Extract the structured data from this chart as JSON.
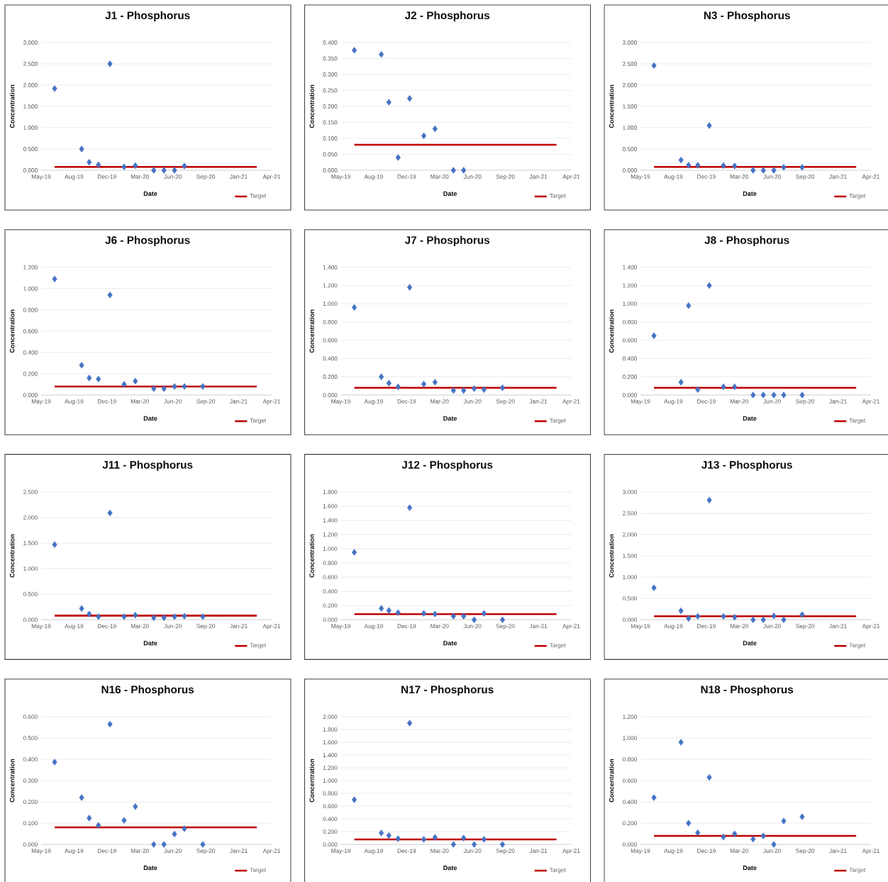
{
  "chart_data": [
    {
      "type": "scatter",
      "title": "J1 - Phosphorus",
      "xlabel": "Date",
      "ylabel": "Concentration",
      "grid": "y",
      "legend": "bottom right",
      "marker": "diamond",
      "xlim": [
        "2019-05-15",
        "2021-04-14"
      ],
      "xticks": [
        {
          "value": "2019-05-15",
          "label": "May-19"
        },
        {
          "value": "2019-08-23",
          "label": "Aug-19"
        },
        {
          "value": "2019-12-01",
          "label": "Dec-19"
        },
        {
          "value": "2020-03-10",
          "label": "Mar-20"
        },
        {
          "value": "2020-06-18",
          "label": "Jun-20"
        },
        {
          "value": "2020-09-26",
          "label": "Sep-20"
        },
        {
          "value": "2021-01-04",
          "label": "Jan-21"
        },
        {
          "value": "2021-04-14",
          "label": "Apr-21"
        }
      ],
      "ylim": [
        0,
        3
      ],
      "yticks": [
        {
          "value": 0,
          "label": "0.000"
        },
        {
          "value": 0.5,
          "label": "0.500"
        },
        {
          "value": 1,
          "label": "1.000"
        },
        {
          "value": 1.5,
          "label": "1.500"
        },
        {
          "value": 2,
          "label": "2.000"
        },
        {
          "value": 2.5,
          "label": "2.500"
        },
        {
          "value": 3,
          "label": "3.000"
        }
      ],
      "series": [
        {
          "type": "scatter",
          "color": "#4472c4",
          "x": [
            "2019-06-25",
            "2019-09-15",
            "2019-10-08",
            "2019-11-05",
            "2019-12-10",
            "2020-01-22",
            "2020-02-25",
            "2020-04-21",
            "2020-05-22",
            "2020-06-23",
            "2020-07-23"
          ],
          "values": [
            1.92,
            0.5,
            0.19,
            0.13,
            2.5,
            0.08,
            0.11,
            0,
            0,
            0,
            0.1
          ]
        },
        {
          "type": "line",
          "name": "Target",
          "color": "#c00000",
          "marker": "none",
          "x": [
            "2019-06-25",
            "2021-02-28"
          ],
          "values": [
            0.08,
            0.08
          ]
        }
      ]
    },
    {
      "type": "scatter",
      "title": "J2 - Phosphorus",
      "xlabel": "Date",
      "ylabel": "Concentration",
      "grid": "y",
      "legend": "bottom right",
      "marker": "diamond",
      "xlim": [
        "2019-05-15",
        "2021-04-14"
      ],
      "xticks": [
        {
          "value": "2019-05-15",
          "label": "May-19"
        },
        {
          "value": "2019-08-23",
          "label": "Aug-19"
        },
        {
          "value": "2019-12-01",
          "label": "Dec-19"
        },
        {
          "value": "2020-03-10",
          "label": "Mar-20"
        },
        {
          "value": "2020-06-18",
          "label": "Jun-20"
        },
        {
          "value": "2020-09-26",
          "label": "Sep-20"
        },
        {
          "value": "2021-01-04",
          "label": "Jan-21"
        },
        {
          "value": "2021-04-14",
          "label": "Apr-21"
        }
      ],
      "ylim": [
        0,
        0.4
      ],
      "yticks": [
        {
          "value": 0,
          "label": "0.000"
        },
        {
          "value": 0.05,
          "label": "0.050"
        },
        {
          "value": 0.1,
          "label": "0.100"
        },
        {
          "value": 0.15,
          "label": "0.150"
        },
        {
          "value": 0.2,
          "label": "0.200"
        },
        {
          "value": 0.25,
          "label": "0.250"
        },
        {
          "value": 0.3,
          "label": "0.300"
        },
        {
          "value": 0.35,
          "label": "0.350"
        },
        {
          "value": 0.4,
          "label": "0.400"
        }
      ],
      "series": [
        {
          "type": "scatter",
          "color": "#4472c4",
          "x": [
            "2019-06-25",
            "2019-09-15",
            "2019-10-08",
            "2019-11-05",
            "2019-12-10",
            "2020-01-22",
            "2020-02-25",
            "2020-04-21",
            "2020-05-22"
          ],
          "values": [
            0.376,
            0.363,
            0.213,
            0.04,
            0.225,
            0.108,
            0.13,
            0,
            0
          ]
        },
        {
          "type": "line",
          "name": "Target",
          "color": "#c00000",
          "marker": "none",
          "x": [
            "2019-06-25",
            "2021-02-28"
          ],
          "values": [
            0.08,
            0.08
          ]
        }
      ]
    },
    {
      "type": "scatter",
      "title": "N3 - Phosphorus",
      "xlabel": "Date",
      "ylabel": "Concentration",
      "grid": "y",
      "legend": "bottom right",
      "marker": "diamond",
      "xlim": [
        "2019-05-15",
        "2021-04-14"
      ],
      "xticks": [
        {
          "value": "2019-05-15",
          "label": "May-19"
        },
        {
          "value": "2019-08-23",
          "label": "Aug-19"
        },
        {
          "value": "2019-12-01",
          "label": "Dec-19"
        },
        {
          "value": "2020-03-10",
          "label": "Mar-20"
        },
        {
          "value": "2020-06-18",
          "label": "Jun-20"
        },
        {
          "value": "2020-09-26",
          "label": "Sep-20"
        },
        {
          "value": "2021-01-04",
          "label": "Jan-21"
        },
        {
          "value": "2021-04-14",
          "label": "Apr-21"
        }
      ],
      "ylim": [
        0,
        3
      ],
      "yticks": [
        {
          "value": 0,
          "label": "0.000"
        },
        {
          "value": 0.5,
          "label": "0.500"
        },
        {
          "value": 1,
          "label": "1.000"
        },
        {
          "value": 1.5,
          "label": "1.500"
        },
        {
          "value": 2,
          "label": "2.000"
        },
        {
          "value": 2.5,
          "label": "2.500"
        },
        {
          "value": 3,
          "label": "3.000"
        }
      ],
      "series": [
        {
          "type": "scatter",
          "color": "#4472c4",
          "x": [
            "2019-06-25",
            "2019-09-15",
            "2019-10-08",
            "2019-11-05",
            "2019-12-10",
            "2020-01-22",
            "2020-02-25",
            "2020-04-21",
            "2020-05-22",
            "2020-06-23",
            "2020-07-23",
            "2020-09-17"
          ],
          "values": [
            2.46,
            0.24,
            0.12,
            0.12,
            1.05,
            0.11,
            0.1,
            0,
            0,
            0,
            0.07,
            0.07
          ]
        },
        {
          "type": "line",
          "name": "Target",
          "color": "#c00000",
          "marker": "none",
          "x": [
            "2019-06-25",
            "2021-02-28"
          ],
          "values": [
            0.08,
            0.08
          ]
        }
      ]
    },
    {
      "type": "scatter",
      "title": "J6 - Phosphorus",
      "xlabel": "Date",
      "ylabel": "Concentration",
      "grid": "y",
      "legend": "bottom right",
      "marker": "diamond",
      "xlim": [
        "2019-05-15",
        "2021-04-14"
      ],
      "xticks": [
        {
          "value": "2019-05-15",
          "label": "May-19"
        },
        {
          "value": "2019-08-23",
          "label": "Aug-19"
        },
        {
          "value": "2019-12-01",
          "label": "Dec-19"
        },
        {
          "value": "2020-03-10",
          "label": "Mar-20"
        },
        {
          "value": "2020-06-18",
          "label": "Jun-20"
        },
        {
          "value": "2020-09-26",
          "label": "Sep-20"
        },
        {
          "value": "2021-01-04",
          "label": "Jan-21"
        },
        {
          "value": "2021-04-14",
          "label": "Apr-21"
        }
      ],
      "ylim": [
        0,
        1.2
      ],
      "yticks": [
        {
          "value": 0,
          "label": "0.000"
        },
        {
          "value": 0.2,
          "label": "0.200"
        },
        {
          "value": 0.4,
          "label": "0.400"
        },
        {
          "value": 0.6,
          "label": "0.600"
        },
        {
          "value": 0.8,
          "label": "0.800"
        },
        {
          "value": 1,
          "label": "1.000"
        },
        {
          "value": 1.2,
          "label": "1.200"
        }
      ],
      "series": [
        {
          "type": "scatter",
          "color": "#4472c4",
          "x": [
            "2019-06-25",
            "2019-09-15",
            "2019-10-08",
            "2019-11-05",
            "2019-12-10",
            "2020-01-22",
            "2020-02-25",
            "2020-04-21",
            "2020-05-22",
            "2020-06-23",
            "2020-07-23",
            "2020-09-17"
          ],
          "values": [
            1.09,
            0.28,
            0.16,
            0.15,
            0.94,
            0.1,
            0.13,
            0.06,
            0.06,
            0.08,
            0.08,
            0.08
          ]
        },
        {
          "type": "line",
          "name": "Target",
          "color": "#c00000",
          "marker": "none",
          "x": [
            "2019-06-25",
            "2021-02-28"
          ],
          "values": [
            0.08,
            0.08
          ]
        }
      ]
    },
    {
      "type": "scatter",
      "title": "J7 - Phosphorus",
      "xlabel": "Date",
      "ylabel": "Concentration",
      "grid": "y",
      "legend": "bottom right",
      "marker": "diamond",
      "xlim": [
        "2019-05-15",
        "2021-04-14"
      ],
      "xticks": [
        {
          "value": "2019-05-15",
          "label": "May-19"
        },
        {
          "value": "2019-08-23",
          "label": "Aug-19"
        },
        {
          "value": "2019-12-01",
          "label": "Dec-19"
        },
        {
          "value": "2020-03-10",
          "label": "Mar-20"
        },
        {
          "value": "2020-06-18",
          "label": "Jun-20"
        },
        {
          "value": "2020-09-26",
          "label": "Sep-20"
        },
        {
          "value": "2021-01-04",
          "label": "Jan-21"
        },
        {
          "value": "2021-04-14",
          "label": "Apr-21"
        }
      ],
      "ylim": [
        0,
        1.4
      ],
      "yticks": [
        {
          "value": 0,
          "label": "0.000"
        },
        {
          "value": 0.2,
          "label": "0.200"
        },
        {
          "value": 0.4,
          "label": "0.400"
        },
        {
          "value": 0.6,
          "label": "0.600"
        },
        {
          "value": 0.8,
          "label": "0.800"
        },
        {
          "value": 1,
          "label": "1.000"
        },
        {
          "value": 1.2,
          "label": "1.200"
        },
        {
          "value": 1.4,
          "label": "1.400"
        }
      ],
      "series": [
        {
          "type": "scatter",
          "color": "#4472c4",
          "x": [
            "2019-06-25",
            "2019-09-15",
            "2019-10-08",
            "2019-11-05",
            "2019-12-10",
            "2020-01-22",
            "2020-02-25",
            "2020-04-21",
            "2020-05-22",
            "2020-06-23",
            "2020-07-23",
            "2020-09-17"
          ],
          "values": [
            0.96,
            0.2,
            0.13,
            0.09,
            1.18,
            0.12,
            0.14,
            0.05,
            0.05,
            0.07,
            0.06,
            0.08
          ]
        },
        {
          "type": "line",
          "name": "Target",
          "color": "#c00000",
          "marker": "none",
          "x": [
            "2019-06-25",
            "2021-02-28"
          ],
          "values": [
            0.08,
            0.08
          ]
        }
      ]
    },
    {
      "type": "scatter",
      "title": "J8 - Phosphorus",
      "xlabel": "Date",
      "ylabel": "Concentration",
      "grid": "y",
      "legend": "bottom right",
      "marker": "diamond",
      "xlim": [
        "2019-05-15",
        "2021-04-14"
      ],
      "xticks": [
        {
          "value": "2019-05-15",
          "label": "May-19"
        },
        {
          "value": "2019-08-23",
          "label": "Aug-19"
        },
        {
          "value": "2019-12-01",
          "label": "Dec-19"
        },
        {
          "value": "2020-03-10",
          "label": "Mar-20"
        },
        {
          "value": "2020-06-18",
          "label": "Jun-20"
        },
        {
          "value": "2020-09-26",
          "label": "Sep-20"
        },
        {
          "value": "2021-01-04",
          "label": "Jan-21"
        },
        {
          "value": "2021-04-14",
          "label": "Apr-21"
        }
      ],
      "ylim": [
        0,
        1.4
      ],
      "yticks": [
        {
          "value": 0,
          "label": "0.000"
        },
        {
          "value": 0.2,
          "label": "0.200"
        },
        {
          "value": 0.4,
          "label": "0.400"
        },
        {
          "value": 0.6,
          "label": "0.600"
        },
        {
          "value": 0.8,
          "label": "0.800"
        },
        {
          "value": 1,
          "label": "1.000"
        },
        {
          "value": 1.2,
          "label": "1.200"
        },
        {
          "value": 1.4,
          "label": "1.400"
        }
      ],
      "series": [
        {
          "type": "scatter",
          "color": "#4472c4",
          "x": [
            "2019-06-25",
            "2019-09-15",
            "2019-10-08",
            "2019-11-05",
            "2019-12-10",
            "2020-01-22",
            "2020-02-25",
            "2020-04-21",
            "2020-05-22",
            "2020-06-23",
            "2020-07-23",
            "2020-09-17"
          ],
          "values": [
            0.65,
            0.14,
            0.98,
            0.06,
            1.2,
            0.09,
            0.09,
            0,
            0,
            0,
            0,
            0
          ]
        },
        {
          "type": "line",
          "name": "Target",
          "color": "#c00000",
          "marker": "none",
          "x": [
            "2019-06-25",
            "2021-02-28"
          ],
          "values": [
            0.08,
            0.08
          ]
        }
      ]
    },
    {
      "type": "scatter",
      "title": "J11 - Phosphorus",
      "xlabel": "Date",
      "ylabel": "Concentration",
      "grid": "y",
      "legend": "bottom right",
      "marker": "diamond",
      "xlim": [
        "2019-05-15",
        "2021-04-14"
      ],
      "xticks": [
        {
          "value": "2019-05-15",
          "label": "May-19"
        },
        {
          "value": "2019-08-23",
          "label": "Aug-19"
        },
        {
          "value": "2019-12-01",
          "label": "Dec-19"
        },
        {
          "value": "2020-03-10",
          "label": "Mar-20"
        },
        {
          "value": "2020-06-18",
          "label": "Jun-20"
        },
        {
          "value": "2020-09-26",
          "label": "Sep-20"
        },
        {
          "value": "2021-01-04",
          "label": "Jan-21"
        },
        {
          "value": "2021-04-14",
          "label": "Apr-21"
        }
      ],
      "ylim": [
        0,
        2.5
      ],
      "yticks": [
        {
          "value": 0,
          "label": "0.000"
        },
        {
          "value": 0.5,
          "label": "0.500"
        },
        {
          "value": 1,
          "label": "1.000"
        },
        {
          "value": 1.5,
          "label": "1.500"
        },
        {
          "value": 2,
          "label": "2.000"
        },
        {
          "value": 2.5,
          "label": "2.500"
        }
      ],
      "series": [
        {
          "type": "scatter",
          "color": "#4472c4",
          "x": [
            "2019-06-25",
            "2019-09-15",
            "2019-10-08",
            "2019-11-05",
            "2019-12-10",
            "2020-01-22",
            "2020-02-25",
            "2020-04-21",
            "2020-05-22",
            "2020-06-23",
            "2020-07-23",
            "2020-09-17"
          ],
          "values": [
            1.47,
            0.22,
            0.11,
            0.06,
            2.09,
            0.06,
            0.09,
            0.04,
            0.04,
            0.06,
            0.07,
            0.06
          ]
        },
        {
          "type": "line",
          "name": "Target",
          "color": "#c00000",
          "marker": "none",
          "x": [
            "2019-06-25",
            "2021-02-28"
          ],
          "values": [
            0.08,
            0.08
          ]
        }
      ]
    },
    {
      "type": "scatter",
      "title": "J12 - Phosphorus",
      "xlabel": "Date",
      "ylabel": "Concentration",
      "grid": "y",
      "legend": "bottom right",
      "marker": "diamond",
      "xlim": [
        "2019-05-15",
        "2021-04-14"
      ],
      "xticks": [
        {
          "value": "2019-05-15",
          "label": "May-19"
        },
        {
          "value": "2019-08-23",
          "label": "Aug-19"
        },
        {
          "value": "2019-12-01",
          "label": "Dec-19"
        },
        {
          "value": "2020-03-10",
          "label": "Mar-20"
        },
        {
          "value": "2020-06-18",
          "label": "Jun-20"
        },
        {
          "value": "2020-09-26",
          "label": "Sep-20"
        },
        {
          "value": "2021-01-04",
          "label": "Jan-21"
        },
        {
          "value": "2021-04-14",
          "label": "Apr-21"
        }
      ],
      "ylim": [
        0,
        1.8
      ],
      "yticks": [
        {
          "value": 0,
          "label": "0.000"
        },
        {
          "value": 0.2,
          "label": "0.200"
        },
        {
          "value": 0.4,
          "label": "0.400"
        },
        {
          "value": 0.6,
          "label": "0.600"
        },
        {
          "value": 0.8,
          "label": "0.800"
        },
        {
          "value": 1,
          "label": "1.000"
        },
        {
          "value": 1.2,
          "label": "1.200"
        },
        {
          "value": 1.4,
          "label": "1.400"
        },
        {
          "value": 1.6,
          "label": "1.600"
        },
        {
          "value": 1.8,
          "label": "1.800"
        }
      ],
      "series": [
        {
          "type": "scatter",
          "color": "#4472c4",
          "x": [
            "2019-06-25",
            "2019-09-15",
            "2019-10-08",
            "2019-11-05",
            "2019-12-10",
            "2020-01-22",
            "2020-02-25",
            "2020-04-21",
            "2020-05-22",
            "2020-06-23",
            "2020-07-23",
            "2020-09-17"
          ],
          "values": [
            0.95,
            0.16,
            0.13,
            0.1,
            1.58,
            0.09,
            0.08,
            0.05,
            0.05,
            0,
            0.09,
            0
          ]
        },
        {
          "type": "line",
          "name": "Target",
          "color": "#c00000",
          "marker": "none",
          "x": [
            "2019-06-25",
            "2021-02-28"
          ],
          "values": [
            0.08,
            0.08
          ]
        }
      ]
    },
    {
      "type": "scatter",
      "title": "J13 - Phosphorus",
      "xlabel": "Date",
      "ylabel": "Concentration",
      "grid": "y",
      "legend": "bottom right",
      "marker": "diamond",
      "xlim": [
        "2019-05-15",
        "2021-04-14"
      ],
      "xticks": [
        {
          "value": "2019-05-15",
          "label": "May-19"
        },
        {
          "value": "2019-08-23",
          "label": "Aug-19"
        },
        {
          "value": "2019-12-01",
          "label": "Dec-19"
        },
        {
          "value": "2020-03-10",
          "label": "Mar-20"
        },
        {
          "value": "2020-06-18",
          "label": "Jun-20"
        },
        {
          "value": "2020-09-26",
          "label": "Sep-20"
        },
        {
          "value": "2021-01-04",
          "label": "Jan-21"
        },
        {
          "value": "2021-04-14",
          "label": "Apr-21"
        }
      ],
      "ylim": [
        0,
        3
      ],
      "yticks": [
        {
          "value": 0,
          "label": "0.000"
        },
        {
          "value": 0.5,
          "label": "0.500"
        },
        {
          "value": 1,
          "label": "1.000"
        },
        {
          "value": 1.5,
          "label": "1.500"
        },
        {
          "value": 2,
          "label": "2.000"
        },
        {
          "value": 2.5,
          "label": "2.500"
        },
        {
          "value": 3,
          "label": "3.000"
        }
      ],
      "series": [
        {
          "type": "scatter",
          "color": "#4472c4",
          "x": [
            "2019-06-25",
            "2019-09-15",
            "2019-10-08",
            "2019-11-05",
            "2019-12-10",
            "2020-01-22",
            "2020-02-25",
            "2020-04-21",
            "2020-05-22",
            "2020-06-23",
            "2020-07-23",
            "2020-09-17"
          ],
          "values": [
            0.75,
            0.21,
            0.03,
            0.08,
            2.81,
            0.08,
            0.06,
            0,
            0,
            0.09,
            0,
            0.12
          ]
        },
        {
          "type": "line",
          "name": "Target",
          "color": "#c00000",
          "marker": "none",
          "x": [
            "2019-06-25",
            "2021-02-28"
          ],
          "values": [
            0.08,
            0.08
          ]
        }
      ]
    },
    {
      "type": "scatter",
      "title": "N16 - Phosphorus",
      "xlabel": "Date",
      "ylabel": "Concentration",
      "grid": "y",
      "legend": "bottom right",
      "marker": "diamond",
      "xlim": [
        "2019-05-15",
        "2021-04-14"
      ],
      "xticks": [
        {
          "value": "2019-05-15",
          "label": "May-19"
        },
        {
          "value": "2019-08-23",
          "label": "Aug-19"
        },
        {
          "value": "2019-12-01",
          "label": "Dec-19"
        },
        {
          "value": "2020-03-10",
          "label": "Mar-20"
        },
        {
          "value": "2020-06-18",
          "label": "Jun-20"
        },
        {
          "value": "2020-09-26",
          "label": "Sep-20"
        },
        {
          "value": "2021-01-04",
          "label": "Jan-21"
        },
        {
          "value": "2021-04-14",
          "label": "Apr-21"
        }
      ],
      "ylim": [
        0,
        0.6
      ],
      "yticks": [
        {
          "value": 0,
          "label": "0.000"
        },
        {
          "value": 0.1,
          "label": "0.100"
        },
        {
          "value": 0.2,
          "label": "0.200"
        },
        {
          "value": 0.3,
          "label": "0.300"
        },
        {
          "value": 0.4,
          "label": "0.400"
        },
        {
          "value": 0.5,
          "label": "0.500"
        },
        {
          "value": 0.6,
          "label": "0.600"
        }
      ],
      "series": [
        {
          "type": "scatter",
          "color": "#4472c4",
          "x": [
            "2019-06-25",
            "2019-09-15",
            "2019-10-08",
            "2019-11-05",
            "2019-12-10",
            "2020-01-22",
            "2020-02-25",
            "2020-04-21",
            "2020-05-22",
            "2020-06-23",
            "2020-07-23",
            "2020-09-17"
          ],
          "values": [
            0.387,
            0.22,
            0.124,
            0.09,
            0.565,
            0.113,
            0.178,
            0,
            0,
            0.049,
            0.074,
            0
          ]
        },
        {
          "type": "line",
          "name": "Target",
          "color": "#c00000",
          "marker": "none",
          "x": [
            "2019-06-25",
            "2021-02-28"
          ],
          "values": [
            0.08,
            0.08
          ]
        }
      ]
    },
    {
      "type": "scatter",
      "title": "N17 - Phosphorus",
      "xlabel": "Date",
      "ylabel": "Concentration",
      "grid": "y",
      "legend": "bottom right",
      "marker": "diamond",
      "xlim": [
        "2019-05-15",
        "2021-04-14"
      ],
      "xticks": [
        {
          "value": "2019-05-15",
          "label": "May-19"
        },
        {
          "value": "2019-08-23",
          "label": "Aug-19"
        },
        {
          "value": "2019-12-01",
          "label": "Dec-19"
        },
        {
          "value": "2020-03-10",
          "label": "Mar-20"
        },
        {
          "value": "2020-06-18",
          "label": "Jun-20"
        },
        {
          "value": "2020-09-26",
          "label": "Sep-20"
        },
        {
          "value": "2021-01-04",
          "label": "Jan-21"
        },
        {
          "value": "2021-04-14",
          "label": "Apr-21"
        }
      ],
      "ylim": [
        0,
        2
      ],
      "yticks": [
        {
          "value": 0,
          "label": "0.000"
        },
        {
          "value": 0.2,
          "label": "0.200"
        },
        {
          "value": 0.4,
          "label": "0.400"
        },
        {
          "value": 0.6,
          "label": "0.600"
        },
        {
          "value": 0.8,
          "label": "0.800"
        },
        {
          "value": 1,
          "label": "1.000"
        },
        {
          "value": 1.2,
          "label": "1.200"
        },
        {
          "value": 1.4,
          "label": "1.400"
        },
        {
          "value": 1.6,
          "label": "1.600"
        },
        {
          "value": 1.8,
          "label": "1.800"
        },
        {
          "value": 2,
          "label": "2.000"
        }
      ],
      "series": [
        {
          "type": "scatter",
          "color": "#4472c4",
          "x": [
            "2019-06-25",
            "2019-09-15",
            "2019-10-08",
            "2019-11-05",
            "2019-12-10",
            "2020-01-22",
            "2020-02-25",
            "2020-04-21",
            "2020-05-22",
            "2020-06-23",
            "2020-07-23",
            "2020-09-17"
          ],
          "values": [
            0.7,
            0.18,
            0.14,
            0.09,
            1.9,
            0.08,
            0.11,
            0,
            0.1,
            0,
            0.08,
            0
          ]
        },
        {
          "type": "line",
          "name": "Target",
          "color": "#c00000",
          "marker": "none",
          "x": [
            "2019-06-25",
            "2021-02-28"
          ],
          "values": [
            0.08,
            0.08
          ]
        }
      ]
    },
    {
      "type": "scatter",
      "title": "N18 - Phosphorus",
      "xlabel": "Date",
      "ylabel": "Concentration",
      "grid": "y",
      "legend": "bottom right",
      "marker": "diamond",
      "xlim": [
        "2019-05-15",
        "2021-04-14"
      ],
      "xticks": [
        {
          "value": "2019-05-15",
          "label": "May-19"
        },
        {
          "value": "2019-08-23",
          "label": "Aug-19"
        },
        {
          "value": "2019-12-01",
          "label": "Dec-19"
        },
        {
          "value": "2020-03-10",
          "label": "Mar-20"
        },
        {
          "value": "2020-06-18",
          "label": "Jun-20"
        },
        {
          "value": "2020-09-26",
          "label": "Sep-20"
        },
        {
          "value": "2021-01-04",
          "label": "Jan-21"
        },
        {
          "value": "2021-04-14",
          "label": "Apr-21"
        }
      ],
      "ylim": [
        0,
        1.2
      ],
      "yticks": [
        {
          "value": 0,
          "label": "0.000"
        },
        {
          "value": 0.2,
          "label": "0.200"
        },
        {
          "value": 0.4,
          "label": "0.400"
        },
        {
          "value": 0.6,
          "label": "0.600"
        },
        {
          "value": 0.8,
          "label": "0.800"
        },
        {
          "value": 1,
          "label": "1.000"
        },
        {
          "value": 1.2,
          "label": "1.200"
        }
      ],
      "series": [
        {
          "type": "scatter",
          "color": "#4472c4",
          "x": [
            "2019-06-25",
            "2019-09-15",
            "2019-10-08",
            "2019-11-05",
            "2019-12-10",
            "2020-01-22",
            "2020-02-25",
            "2020-04-21",
            "2020-05-22",
            "2020-06-23",
            "2020-07-23",
            "2020-09-17"
          ],
          "values": [
            0.44,
            0.96,
            0.2,
            0.11,
            0.63,
            0.07,
            0.1,
            0.05,
            0.08,
            0,
            0.22,
            0.26
          ]
        },
        {
          "type": "line",
          "name": "Target",
          "color": "#c00000",
          "marker": "none",
          "x": [
            "2019-06-25",
            "2021-02-28"
          ],
          "values": [
            0.08,
            0.08
          ]
        }
      ]
    }
  ]
}
